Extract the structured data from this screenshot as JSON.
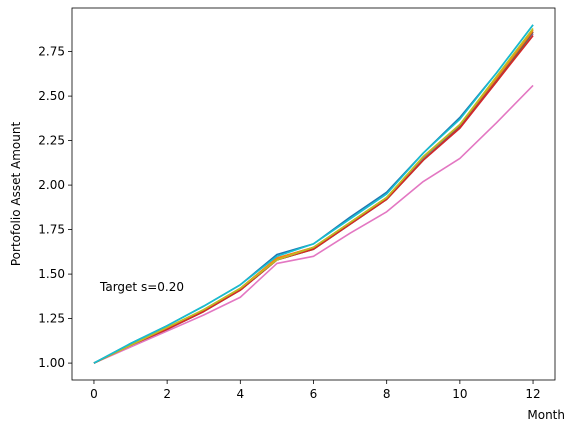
{
  "chart_data": {
    "type": "line",
    "xlabel": "Month",
    "ylabel": "Portofolio Asset Amount",
    "annotation": "Target s=0.20",
    "xlim": [
      -0.6,
      12.6
    ],
    "ylim": [
      0.905,
      2.995
    ],
    "x_ticks": [
      0,
      2,
      4,
      6,
      8,
      10,
      12
    ],
    "y_ticks": [
      1.0,
      1.25,
      1.5,
      1.75,
      2.0,
      2.25,
      2.5,
      2.75
    ],
    "y_tick_labels": [
      "1.00",
      "1.25",
      "1.50",
      "1.75",
      "2.00",
      "2.25",
      "2.50",
      "2.75"
    ],
    "legend": "none",
    "grid": false,
    "x": [
      0,
      1,
      2,
      3,
      4,
      5,
      6,
      7,
      8,
      9,
      10,
      11,
      12
    ],
    "series": [
      {
        "color": "#e377c2",
        "values": [
          1.0,
          1.09,
          1.18,
          1.27,
          1.37,
          1.56,
          1.6,
          1.73,
          1.85,
          2.02,
          2.15,
          2.35,
          2.56
        ]
      },
      {
        "color": "#9467bd",
        "values": [
          1.0,
          1.1,
          1.19,
          1.29,
          1.41,
          1.58,
          1.64,
          1.78,
          1.92,
          2.14,
          2.32,
          2.58,
          2.85
        ]
      },
      {
        "color": "#2ca02c",
        "values": [
          1.0,
          1.1,
          1.19,
          1.29,
          1.41,
          1.58,
          1.64,
          1.78,
          1.92,
          2.14,
          2.33,
          2.58,
          2.86
        ]
      },
      {
        "color": "#8c564b",
        "values": [
          1.0,
          1.1,
          1.19,
          1.3,
          1.41,
          1.58,
          1.65,
          1.79,
          1.93,
          2.15,
          2.33,
          2.59,
          2.86
        ]
      },
      {
        "color": "#7f7f7f",
        "values": [
          1.0,
          1.1,
          1.19,
          1.3,
          1.42,
          1.59,
          1.65,
          1.79,
          1.93,
          2.15,
          2.34,
          2.6,
          2.87
        ]
      },
      {
        "color": "#d62728",
        "values": [
          1.0,
          1.1,
          1.19,
          1.29,
          1.41,
          1.58,
          1.64,
          1.78,
          1.92,
          2.14,
          2.32,
          2.58,
          2.84
        ]
      },
      {
        "color": "#ff7f0e",
        "values": [
          1.0,
          1.1,
          1.2,
          1.3,
          1.42,
          1.59,
          1.65,
          1.79,
          1.93,
          2.16,
          2.34,
          2.6,
          2.87
        ]
      },
      {
        "color": "#bcbd22",
        "values": [
          1.0,
          1.1,
          1.2,
          1.3,
          1.42,
          1.58,
          1.65,
          1.79,
          1.93,
          2.16,
          2.34,
          2.61,
          2.88
        ]
      },
      {
        "color": "#1f77b4",
        "values": [
          1.0,
          1.11,
          1.21,
          1.32,
          1.44,
          1.61,
          1.67,
          1.82,
          1.96,
          2.18,
          2.38,
          2.63,
          2.9
        ]
      },
      {
        "color": "#17becf",
        "values": [
          1.0,
          1.11,
          1.21,
          1.32,
          1.44,
          1.6,
          1.67,
          1.81,
          1.95,
          2.18,
          2.37,
          2.63,
          2.9
        ]
      }
    ]
  }
}
